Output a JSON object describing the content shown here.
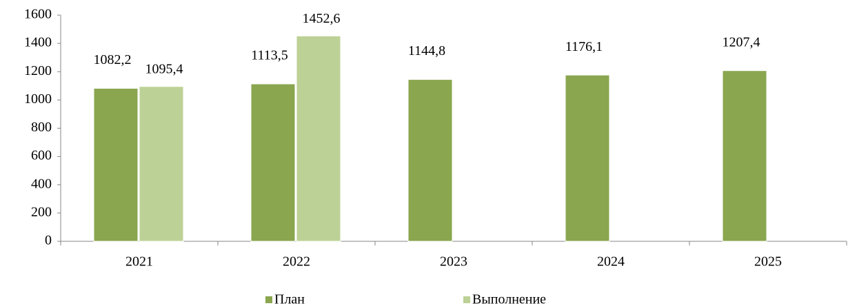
{
  "chart_data": {
    "type": "bar",
    "categories": [
      "2021",
      "2022",
      "2023",
      "2024",
      "2025"
    ],
    "series": [
      {
        "name": "План",
        "color": "#8aa64f",
        "values": [
          1082.2,
          1113.5,
          1144.8,
          1176.1,
          1207.4
        ],
        "value_labels": [
          "1082,2",
          "1113,5",
          "1144,8",
          "1176,1",
          "1207,4"
        ]
      },
      {
        "name": "Выполнение",
        "color": "#bcd196",
        "values": [
          1095.4,
          1452.6,
          null,
          null,
          null
        ],
        "value_labels": [
          "1095,4",
          "1452,6",
          null,
          null,
          null
        ]
      }
    ],
    "ylim": [
      0,
      1600
    ],
    "yticks": [
      0,
      200,
      400,
      600,
      800,
      1000,
      1200,
      1400,
      1600
    ],
    "grid": false,
    "legend": "bottom"
  }
}
